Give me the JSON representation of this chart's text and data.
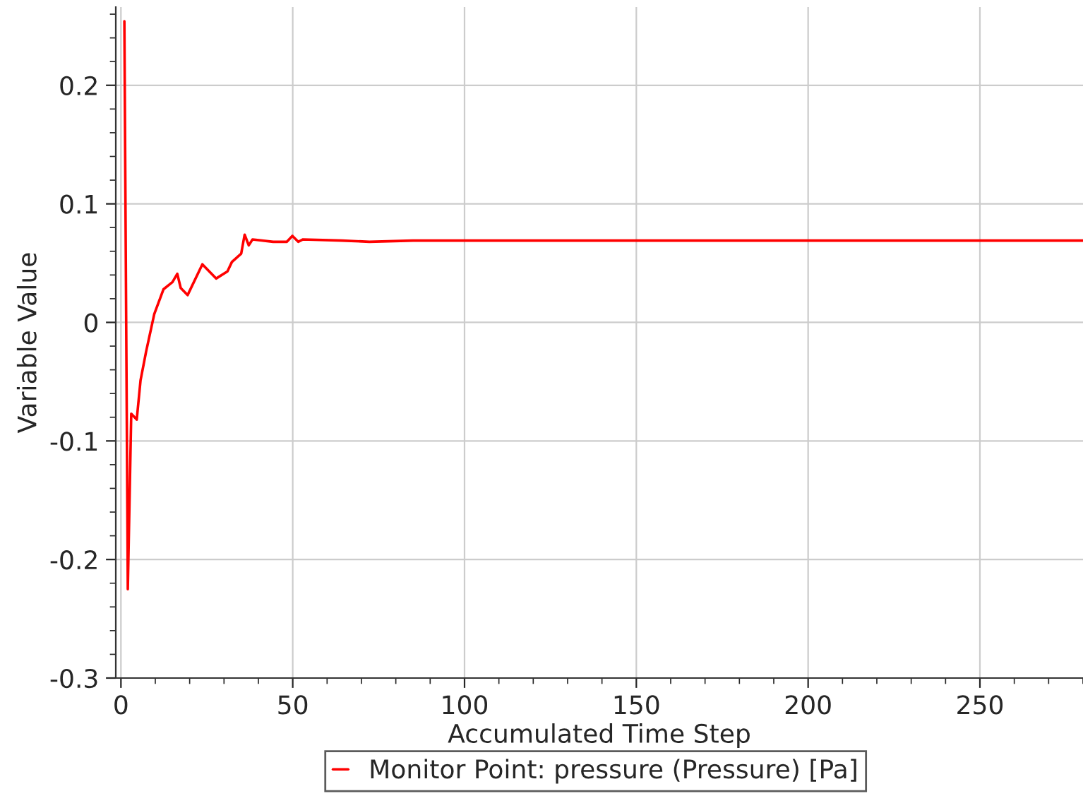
{
  "chart_data": {
    "type": "line",
    "xlabel": "Accumulated Time Step",
    "ylabel": "Variable Value",
    "series": [
      {
        "name": "Monitor Point: pressure (Pressure) [Pa]",
        "color": "#ff0000",
        "x": [
          1,
          2,
          3,
          4.6,
          5.7,
          7.3,
          9.7,
          12.4,
          15,
          16.4,
          17.4,
          19.4,
          23.7,
          27.7,
          31,
          32.3,
          35,
          36,
          37.2,
          38.3,
          44.3,
          48.3,
          49.9,
          51.6,
          53,
          64.3,
          72.3,
          85,
          140,
          280
        ],
        "values": [
          0.254,
          -0.225,
          -0.077,
          -0.082,
          -0.049,
          -0.025,
          0.007,
          0.028,
          0.034,
          0.041,
          0.029,
          0.023,
          0.049,
          0.037,
          0.043,
          0.051,
          0.058,
          0.074,
          0.065,
          0.07,
          0.068,
          0.068,
          0.073,
          0.068,
          0.07,
          0.069,
          0.068,
          0.069,
          0.069,
          0.069
        ]
      }
    ],
    "xlim": [
      -1.5,
      280
    ],
    "ylim": [
      -0.3,
      0.266
    ],
    "xticks": [
      0,
      50,
      100,
      150,
      200,
      250
    ],
    "yticks": [
      -0.3,
      -0.2,
      -0.1,
      0,
      0.1,
      0.2
    ],
    "grid": true,
    "legend": "bottom",
    "marker": "none",
    "line_style": "solid"
  }
}
